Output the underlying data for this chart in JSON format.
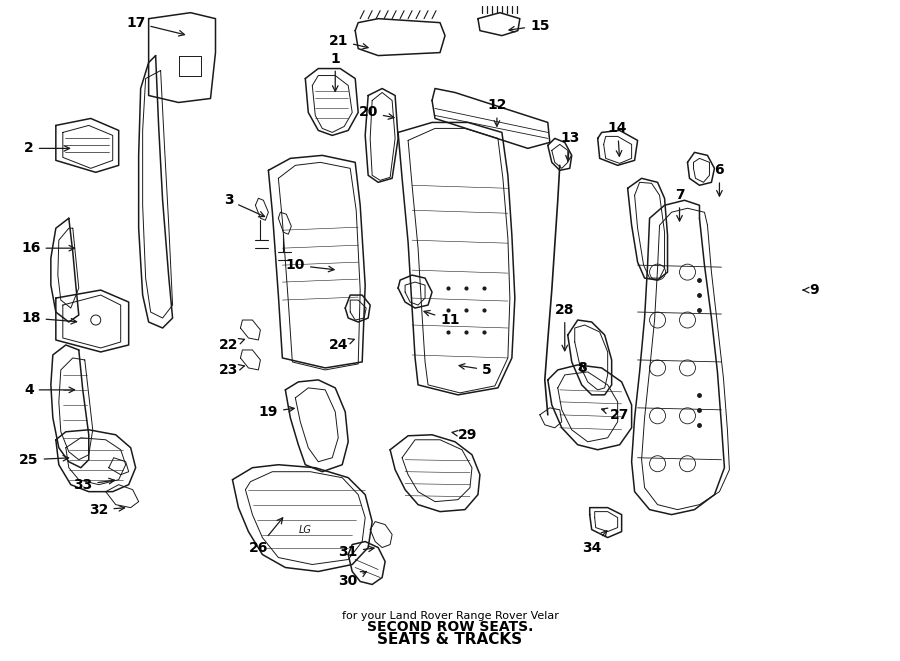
{
  "title": "SEATS & TRACKS",
  "subtitle": "SECOND ROW SEATS.",
  "vehicle": "for your Land Rover Range Rover Velar",
  "background_color": "#ffffff",
  "line_color": "#1a1a1a",
  "text_color": "#000000",
  "fig_width": 9.0,
  "fig_height": 6.61,
  "dpi": 100,
  "label_fontsize": 10,
  "label_positions": {
    "1": [
      335,
      58,
      335,
      95
    ],
    "2": [
      28,
      148,
      73,
      148
    ],
    "3": [
      228,
      200,
      268,
      218
    ],
    "4": [
      28,
      390,
      78,
      390
    ],
    "5": [
      487,
      370,
      455,
      365
    ],
    "6": [
      720,
      170,
      720,
      200
    ],
    "7": [
      680,
      195,
      680,
      225
    ],
    "8": [
      582,
      368,
      582,
      360
    ],
    "9": [
      815,
      290,
      800,
      290
    ],
    "10": [
      295,
      265,
      338,
      270
    ],
    "11": [
      450,
      320,
      420,
      310
    ],
    "12": [
      497,
      105,
      497,
      130
    ],
    "13": [
      570,
      138,
      568,
      165
    ],
    "14": [
      618,
      128,
      620,
      160
    ],
    "15": [
      540,
      25,
      505,
      30
    ],
    "16": [
      30,
      248,
      78,
      248
    ],
    "17": [
      135,
      22,
      188,
      35
    ],
    "18": [
      30,
      318,
      80,
      322
    ],
    "19": [
      268,
      412,
      298,
      408
    ],
    "20": [
      368,
      112,
      398,
      118
    ],
    "21": [
      338,
      40,
      372,
      48
    ],
    "22": [
      228,
      345,
      248,
      338
    ],
    "23": [
      228,
      370,
      248,
      365
    ],
    "24": [
      338,
      345,
      358,
      338
    ],
    "25": [
      28,
      460,
      72,
      458
    ],
    "26": [
      258,
      548,
      285,
      515
    ],
    "27": [
      620,
      415,
      598,
      408
    ],
    "28": [
      565,
      310,
      565,
      355
    ],
    "29": [
      468,
      435,
      448,
      432
    ],
    "30": [
      348,
      582,
      370,
      570
    ],
    "31": [
      348,
      552,
      378,
      548
    ],
    "32": [
      98,
      510,
      128,
      508
    ],
    "33": [
      82,
      485,
      118,
      480
    ],
    "34": [
      592,
      548,
      610,
      528
    ]
  }
}
